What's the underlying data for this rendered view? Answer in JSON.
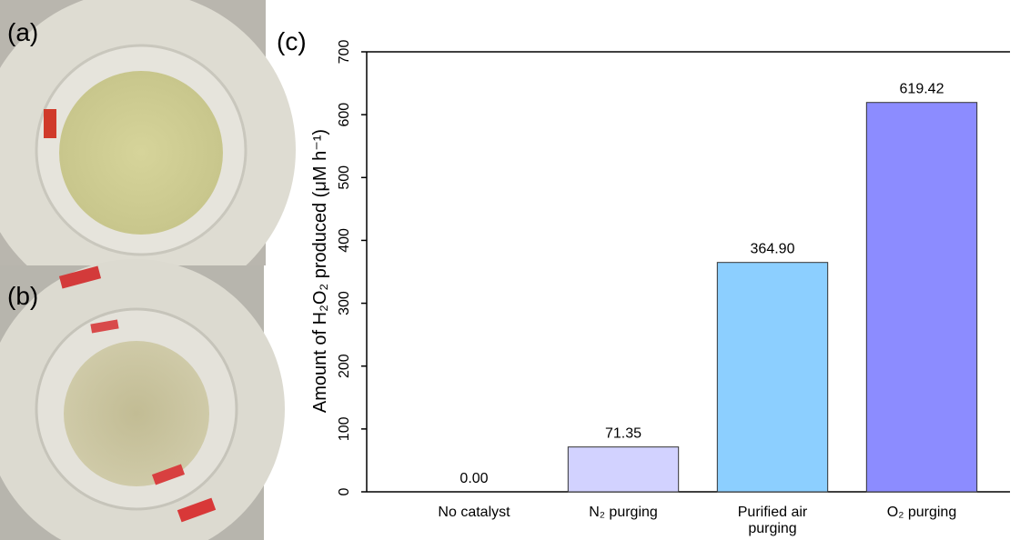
{
  "panel_labels": [
    "(a)",
    "(b)"
  ],
  "chart_data": {
    "type": "bar",
    "panel_label": "(c)",
    "y_label": "Amount of H₂O₂ produced (μM h⁻¹)",
    "categories": [
      "No catalyst",
      "N₂ purging",
      "Purified air purging",
      "O₂ purging"
    ],
    "values": [
      0,
      71.35,
      364.9,
      619.42
    ],
    "value_labels": [
      "0.00",
      "71.35",
      "364.90",
      "619.42"
    ],
    "colors": [
      "#ffffff",
      "#d2d2ff",
      "#8ccfff",
      "#8c8cff"
    ],
    "ylim": [
      0,
      700
    ],
    "yticks": [
      0,
      100,
      200,
      300,
      400,
      500,
      600,
      700
    ]
  }
}
